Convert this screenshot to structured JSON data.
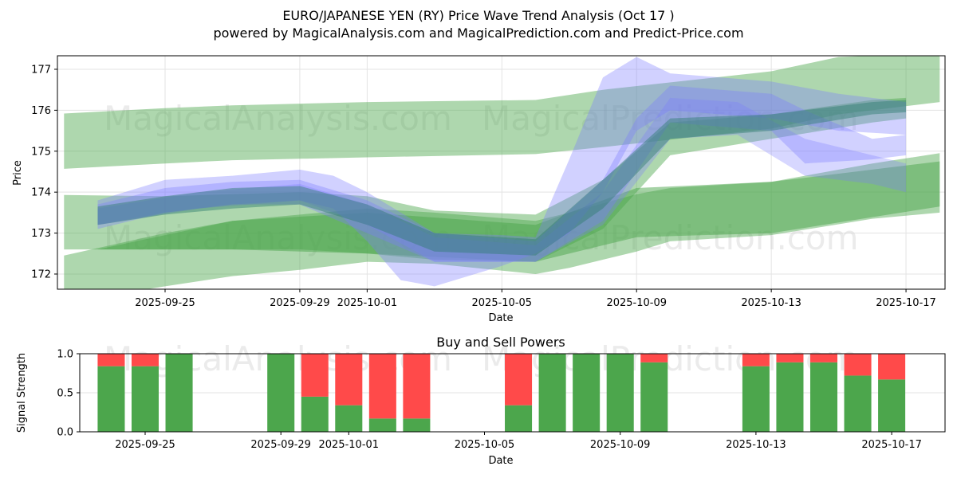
{
  "title_line1": "EURO/JAPANESE YEN (RY) Price Wave Trend Analysis (Oct 17 )",
  "title_line2": "powered by MagicalAnalysis.com and MagicalPrediction.com and Predict-Price.com",
  "watermarks": [
    "MagicalAnalysis.com",
    "MagicalPrediction.com"
  ],
  "colors": {
    "buy": "#4ca64c",
    "sell": "#ff4a4a",
    "band_green": "#4ca64c",
    "band_blue": "#7b7bff"
  },
  "chart_data": [
    {
      "type": "area",
      "title": "",
      "xlabel": "Date",
      "ylabel": "Price",
      "ylim": [
        171.63,
        177.33
      ],
      "xlim": [
        "2025-09-21",
        "2025-10-18"
      ],
      "yticks": [
        "172",
        "173",
        "174",
        "175",
        "176",
        "177"
      ],
      "xticks": [
        "2025-09-25",
        "2025-09-29",
        "2025-10-01",
        "2025-10-05",
        "2025-10-09",
        "2025-10-13",
        "2025-10-17"
      ],
      "grid": true,
      "series": [
        {
          "name": "upper-green-band",
          "color": "green",
          "opacity": 0.45,
          "x": [
            "2025-09-22",
            "2025-09-25",
            "2025-09-27",
            "2025-10-01",
            "2025-10-06",
            "2025-10-08",
            "2025-10-13",
            "2025-10-15",
            "2025-10-18"
          ],
          "upper": [
            175.92,
            176.05,
            176.12,
            176.2,
            176.25,
            176.5,
            176.95,
            177.3,
            177.4
          ],
          "lower": [
            174.57,
            174.7,
            174.78,
            174.85,
            174.93,
            175.1,
            175.55,
            175.9,
            176.2
          ]
        },
        {
          "name": "middle-green-band",
          "color": "green",
          "opacity": 0.45,
          "x": [
            "2025-09-22",
            "2025-09-25",
            "2025-09-27",
            "2025-09-29",
            "2025-10-01",
            "2025-10-03",
            "2025-10-06",
            "2025-10-08",
            "2025-10-10",
            "2025-10-13",
            "2025-10-16",
            "2025-10-17"
          ],
          "upper": [
            173.93,
            173.9,
            173.95,
            174.0,
            173.9,
            173.55,
            173.45,
            174.3,
            175.7,
            175.9,
            176.25,
            176.3
          ],
          "lower": [
            172.6,
            172.6,
            172.6,
            172.6,
            172.5,
            172.35,
            172.3,
            173.1,
            174.9,
            175.3,
            175.7,
            175.8
          ]
        },
        {
          "name": "lower-green-band",
          "color": "green",
          "opacity": 0.45,
          "x": [
            "2025-09-22",
            "2025-09-25",
            "2025-09-27",
            "2025-09-29",
            "2025-10-01",
            "2025-10-03",
            "2025-10-06",
            "2025-10-07",
            "2025-10-09",
            "2025-10-10",
            "2025-10-13",
            "2025-10-16",
            "2025-10-18"
          ],
          "upper": [
            172.45,
            173.0,
            173.3,
            173.45,
            173.6,
            173.5,
            173.3,
            173.5,
            173.95,
            174.1,
            174.25,
            174.7,
            174.95
          ],
          "lower": [
            171.3,
            171.7,
            171.95,
            172.1,
            172.3,
            172.25,
            172.0,
            172.15,
            172.55,
            172.8,
            172.95,
            173.35,
            173.5
          ]
        },
        {
          "name": "lower-green-band-dark",
          "color": "green",
          "opacity": 0.5,
          "x": [
            "2025-09-23",
            "2025-09-27",
            "2025-10-01",
            "2025-10-06",
            "2025-10-09",
            "2025-10-13",
            "2025-10-18"
          ],
          "upper": [
            172.6,
            173.3,
            173.5,
            173.2,
            174.1,
            174.25,
            174.75
          ],
          "lower": [
            172.6,
            172.6,
            172.5,
            172.3,
            172.9,
            173.0,
            173.65
          ]
        },
        {
          "name": "blue-wave-1",
          "color": "blue",
          "opacity": 0.35,
          "x": [
            "2025-09-23",
            "2025-09-25",
            "2025-09-27",
            "2025-09-29",
            "2025-09-30",
            "2025-10-01",
            "2025-10-02",
            "2025-10-03",
            "2025-10-05",
            "2025-10-06",
            "2025-10-07",
            "2025-10-08",
            "2025-10-09",
            "2025-10-10",
            "2025-10-13",
            "2025-10-15",
            "2025-10-17"
          ],
          "upper": [
            173.8,
            174.3,
            174.4,
            174.55,
            174.4,
            174.0,
            173.5,
            173.0,
            172.95,
            172.9,
            174.8,
            176.8,
            177.3,
            176.9,
            176.7,
            176.4,
            176.2
          ],
          "lower": [
            173.1,
            173.5,
            173.7,
            173.8,
            173.6,
            172.8,
            171.85,
            171.7,
            172.2,
            172.5,
            173.0,
            174.0,
            175.5,
            176.0,
            175.8,
            175.5,
            175.4
          ]
        },
        {
          "name": "blue-wave-2",
          "color": "blue",
          "opacity": 0.35,
          "x": [
            "2025-09-23",
            "2025-09-25",
            "2025-09-27",
            "2025-09-29",
            "2025-10-01",
            "2025-10-03",
            "2025-10-06",
            "2025-10-08",
            "2025-10-09",
            "2025-10-10",
            "2025-10-13",
            "2025-10-14",
            "2025-10-16",
            "2025-10-17"
          ],
          "upper": [
            173.7,
            174.1,
            174.25,
            174.3,
            173.8,
            173.0,
            172.8,
            174.3,
            175.8,
            176.6,
            176.4,
            176.0,
            175.3,
            175.4
          ],
          "lower": [
            173.2,
            173.5,
            173.7,
            173.7,
            173.0,
            172.3,
            172.3,
            173.3,
            174.5,
            175.7,
            175.5,
            174.7,
            174.8,
            174.9
          ]
        },
        {
          "name": "blue-wave-3",
          "color": "blue",
          "opacity": 0.3,
          "x": [
            "2025-09-23",
            "2025-09-26",
            "2025-09-29",
            "2025-10-01",
            "2025-10-03",
            "2025-10-06",
            "2025-10-08",
            "2025-10-10",
            "2025-10-12",
            "2025-10-14",
            "2025-10-16",
            "2025-10-17"
          ],
          "upper": [
            173.6,
            174.0,
            174.2,
            173.7,
            172.9,
            172.7,
            174.0,
            176.3,
            176.2,
            175.3,
            174.9,
            174.7
          ],
          "lower": [
            173.2,
            173.6,
            173.8,
            173.2,
            172.3,
            172.3,
            173.2,
            175.3,
            175.4,
            174.4,
            174.2,
            174.0
          ]
        },
        {
          "name": "teal-core-wave",
          "color": "teal",
          "opacity": 0.45,
          "x": [
            "2025-09-23",
            "2025-09-25",
            "2025-09-27",
            "2025-09-29",
            "2025-10-01",
            "2025-10-03",
            "2025-10-06",
            "2025-10-08",
            "2025-10-10",
            "2025-10-13",
            "2025-10-16",
            "2025-10-17"
          ],
          "upper": [
            173.65,
            173.9,
            174.1,
            174.15,
            173.7,
            173.0,
            172.85,
            174.3,
            175.8,
            175.9,
            176.2,
            176.25
          ],
          "lower": [
            173.2,
            173.45,
            173.6,
            173.7,
            173.2,
            172.55,
            172.45,
            173.6,
            175.3,
            175.5,
            175.9,
            175.95
          ]
        }
      ]
    },
    {
      "type": "bar",
      "title": "Buy and Sell Powers",
      "xlabel": "Date",
      "ylabel": "Signal Strength",
      "ylim": [
        0,
        1
      ],
      "yticks": [
        "0.0",
        "0.5",
        "1.0"
      ],
      "xticks": [
        "2025-09-25",
        "2025-09-29",
        "2025-10-01",
        "2025-10-05",
        "2025-10-09",
        "2025-10-13",
        "2025-10-17"
      ],
      "grid": true,
      "categories": [
        "2025-09-24",
        "2025-09-25",
        "2025-09-26",
        "2025-09-29",
        "2025-09-30",
        "2025-10-01",
        "2025-10-02",
        "2025-10-03",
        "2025-10-06",
        "2025-10-07",
        "2025-10-08",
        "2025-10-09",
        "2025-10-10",
        "2025-10-13",
        "2025-10-14",
        "2025-10-15",
        "2025-10-16",
        "2025-10-17"
      ],
      "series": [
        {
          "name": "Buy",
          "values": [
            0.84,
            0.84,
            1.0,
            1.0,
            0.45,
            0.34,
            0.17,
            0.17,
            0.34,
            1.0,
            1.0,
            1.0,
            0.89,
            0.84,
            0.89,
            0.89,
            0.72,
            0.67
          ]
        },
        {
          "name": "Sell",
          "values": [
            0.16,
            0.16,
            0.0,
            0.0,
            0.55,
            0.66,
            0.83,
            0.83,
            0.66,
            0.0,
            0.0,
            0.0,
            0.11,
            0.16,
            0.11,
            0.11,
            0.28,
            0.33
          ]
        }
      ]
    }
  ]
}
